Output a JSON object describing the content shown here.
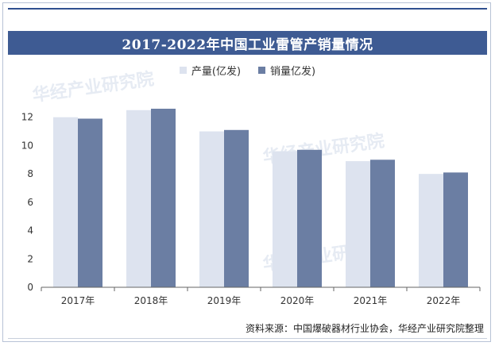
{
  "chart_data": {
    "type": "bar",
    "title": "2017-2022年中国工业雷管产销量情况",
    "categories": [
      "2017年",
      "2018年",
      "2019年",
      "2020年",
      "2021年",
      "2022年"
    ],
    "series": [
      {
        "name": "产量(亿发)",
        "values": [
          12.0,
          12.5,
          11.0,
          9.6,
          8.9,
          8.0
        ],
        "color": "#dde3ef"
      },
      {
        "name": "销量亿发)",
        "values": [
          11.9,
          12.6,
          11.1,
          9.7,
          9.0,
          8.1
        ],
        "color": "#6b7ea3"
      }
    ],
    "ylim": [
      0,
      14
    ],
    "yticks": [
      0,
      2,
      4,
      6,
      8,
      10,
      12
    ],
    "xlabel": "",
    "ylabel": "",
    "legend": "top-center",
    "grid": false
  },
  "source": "资料来源：中国爆破器材行业协会，华经产业研究院整理",
  "watermark": "华经产业研究院",
  "colors": {
    "title_bar": "#3e5b93",
    "top_rule": "#2f4f8f"
  }
}
